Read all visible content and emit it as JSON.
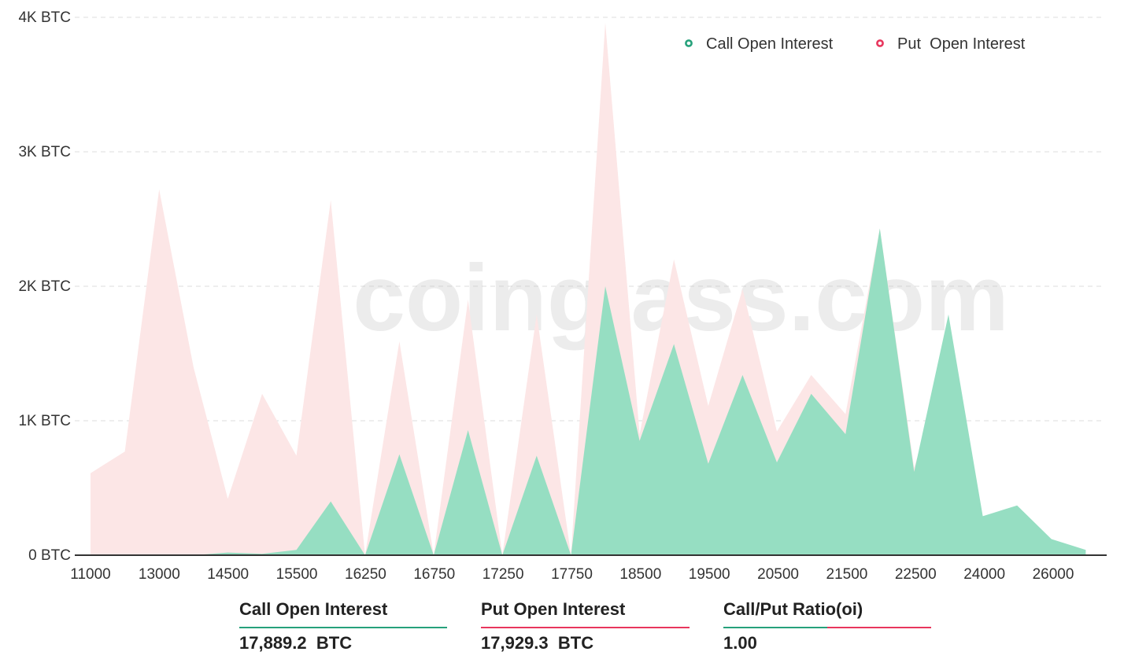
{
  "chart_data": {
    "type": "area",
    "watermark": "coinglass.com",
    "y_ticks": [
      "0 BTC",
      "1K BTC",
      "2K BTC",
      "3K BTC",
      "4K BTC"
    ],
    "ylim": [
      0,
      4000
    ],
    "x_tick_labels": [
      "11000",
      "13000",
      "14500",
      "15500",
      "16250",
      "16750",
      "17250",
      "17750",
      "18500",
      "19500",
      "20500",
      "21500",
      "22500",
      "24000",
      "26000"
    ],
    "x": [
      11000,
      12000,
      13000,
      14000,
      14500,
      15000,
      15500,
      16000,
      16250,
      16500,
      16750,
      17000,
      17250,
      17500,
      17750,
      18000,
      18500,
      19000,
      19500,
      20000,
      20500,
      21000,
      21500,
      22000,
      22500,
      23000,
      24000,
      25000,
      26000,
      28000
    ],
    "grid": true,
    "legend_position": "top-right",
    "legend": [
      {
        "label": "Call Open Interest",
        "color": "#26a17b"
      },
      {
        "label": "Put  Open Interest",
        "color": "#e8365d"
      }
    ],
    "series": [
      {
        "name": "Call Open Interest",
        "color": "#96dec2",
        "values": [
          0,
          0,
          0,
          0,
          20,
          10,
          40,
          400,
          0,
          750,
          0,
          930,
          0,
          740,
          0,
          2000,
          850,
          1570,
          680,
          1340,
          690,
          1200,
          900,
          2430,
          620,
          1790,
          290,
          370,
          120,
          40
        ]
      },
      {
        "name": "Put  Open Interest",
        "color": "#fce6e6",
        "values": [
          610,
          770,
          2720,
          1400,
          420,
          1200,
          740,
          2640,
          0,
          1590,
          0,
          1900,
          0,
          1790,
          0,
          3960,
          900,
          2200,
          1110,
          1980,
          920,
          1340,
          1050,
          2430,
          650,
          1500,
          0,
          0,
          0,
          0
        ]
      }
    ]
  },
  "summary": {
    "call": {
      "label": "Call Open Interest",
      "value": "17,889.2  BTC",
      "color": "#26a17b"
    },
    "put": {
      "label": "Put Open Interest",
      "value": "17,929.3  BTC",
      "color": "#e8365d"
    },
    "ratio": {
      "label": "Call/Put Ratio(oi)",
      "value": "1.00"
    }
  }
}
